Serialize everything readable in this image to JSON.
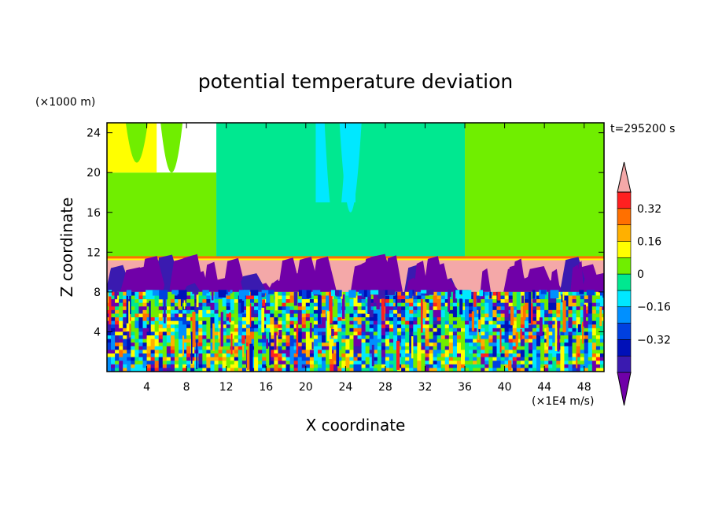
{
  "chart_data": {
    "type": "heatmap",
    "title": "potential temperature deviation",
    "xlabel": "X coordinate",
    "ylabel": "Z coordinate",
    "x_unit": "(×1E4 m/s)",
    "y_unit": "(×1000 m)",
    "time_label": "t=295200 s",
    "xlim": [
      0,
      50
    ],
    "ylim": [
      0,
      25
    ],
    "x_ticks": [
      4,
      8,
      12,
      16,
      20,
      24,
      28,
      32,
      36,
      40,
      44,
      48
    ],
    "y_ticks": [
      4,
      8,
      12,
      16,
      20,
      24
    ],
    "colorbar": {
      "levels": [
        -0.48,
        -0.4,
        -0.32,
        -0.24,
        -0.16,
        -0.08,
        0,
        0.08,
        0.16,
        0.24,
        0.32,
        0.4
      ],
      "colors": [
        "#7000a8",
        "#3a1ab0",
        "#0010b8",
        "#0040e0",
        "#0090ff",
        "#00e8ff",
        "#00e890",
        "#70ee00",
        "#ffff00",
        "#ffb000",
        "#ff7000",
        "#ff2020",
        "#f4a8a8"
      ],
      "tick_values": [
        0.32,
        0.16,
        0,
        -0.16,
        -0.32
      ],
      "tick_labels": [
        "0.32",
        "0.16",
        "0",
        "−0.16",
        "−0.32"
      ]
    },
    "regions": [
      {
        "name": "upper layer x 0-5",
        "x": [
          0,
          5
        ],
        "z": [
          20,
          25
        ],
        "value_class": "0.16 to 0.24"
      },
      {
        "name": "upper layer x 0-11",
        "x": [
          0,
          11
        ],
        "z": [
          11.5,
          20
        ],
        "value_class": "0.08 to 0.16"
      },
      {
        "name": "upper layer x 11-36",
        "x": [
          11,
          36
        ],
        "z": [
          11.5,
          25
        ],
        "value_class": "0 to 0.08"
      },
      {
        "name": "upper layer x 21-25",
        "x": [
          21,
          25
        ],
        "z": [
          17,
          25
        ],
        "value_class": "-0.08 to 0"
      },
      {
        "name": "upper layer x 36-50",
        "x": [
          36,
          50
        ],
        "z": [
          11.5,
          25
        ],
        "value_class": "0.08 to 0.16"
      },
      {
        "name": "inversion layer",
        "x": [
          0,
          50
        ],
        "z": [
          8,
          11.5
        ],
        "value_class": "> 0.40 with intrusions < -0.40"
      },
      {
        "name": "turbulent lower layer",
        "x": [
          0,
          50
        ],
        "z": [
          0,
          8
        ],
        "value_class": "mixed -0.48 to 0.40"
      }
    ]
  }
}
